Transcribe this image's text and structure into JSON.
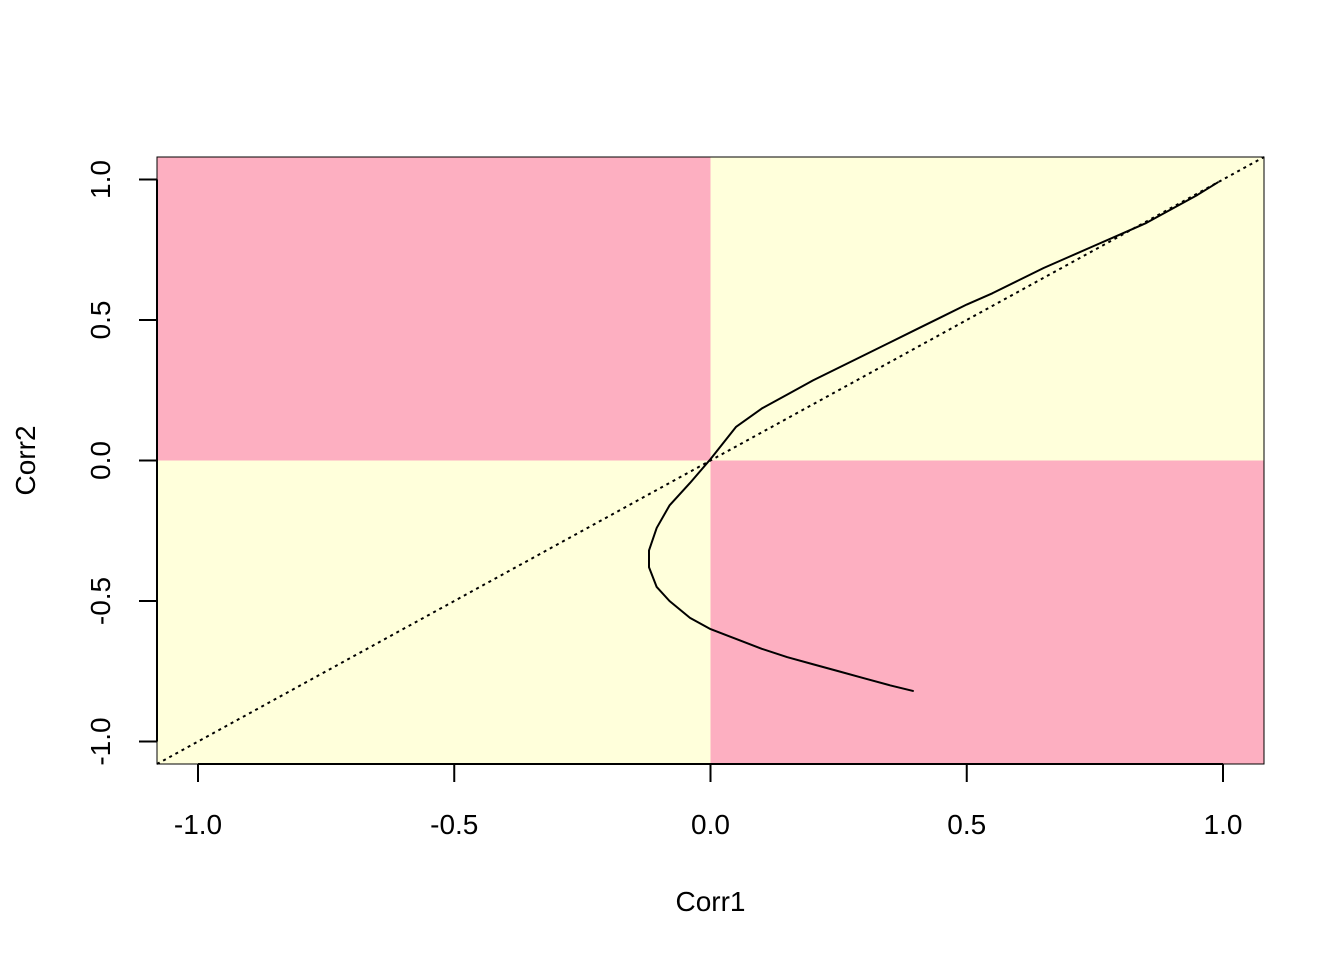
{
  "chart_data": {
    "type": "line",
    "title": "",
    "xlabel": "Corr1",
    "ylabel": "Corr2",
    "xlim": [
      -1.08,
      1.08
    ],
    "ylim": [
      -1.08,
      1.08
    ],
    "x_ticks": [
      -1.0,
      -0.5,
      0.0,
      0.5,
      1.0
    ],
    "x_tick_labels": [
      "-1.0",
      "-0.5",
      "0.0",
      "0.5",
      "1.0"
    ],
    "y_ticks": [
      -1.0,
      -0.5,
      0.0,
      0.5,
      1.0
    ],
    "y_tick_labels": [
      "-1.0",
      "-0.5",
      "0.0",
      "0.5",
      "1.0"
    ],
    "grid": false,
    "background_regions": [
      {
        "quadrant": "upper-left",
        "x": [
          -1.08,
          0
        ],
        "y": [
          0,
          1.08
        ],
        "color": "#FDAFC1"
      },
      {
        "quadrant": "upper-right",
        "x": [
          0,
          1.08
        ],
        "y": [
          0,
          1.08
        ],
        "color": "#FFFFDB"
      },
      {
        "quadrant": "lower-left",
        "x": [
          -1.08,
          0
        ],
        "y": [
          -1.08,
          0
        ],
        "color": "#FFFFDB"
      },
      {
        "quadrant": "lower-right",
        "x": [
          0,
          1.08
        ],
        "y": [
          -1.08,
          0
        ],
        "color": "#FDAFC1"
      }
    ],
    "series": [
      {
        "style": "solid",
        "color": "#000000",
        "x": [
          0.99,
          0.95,
          0.9,
          0.85,
          0.8,
          0.75,
          0.7,
          0.65,
          0.6,
          0.55,
          0.5,
          0.45,
          0.4,
          0.35,
          0.3,
          0.25,
          0.2,
          0.15,
          0.1,
          0.05,
          0.0,
          -0.04,
          -0.08,
          -0.105,
          -0.12,
          -0.12,
          -0.105,
          -0.08,
          -0.04,
          0.0,
          0.05,
          0.1,
          0.15,
          0.2,
          0.25,
          0.3,
          0.35,
          0.395
        ],
        "y": [
          0.99,
          0.945,
          0.895,
          0.845,
          0.805,
          0.765,
          0.725,
          0.685,
          0.64,
          0.595,
          0.555,
          0.51,
          0.465,
          0.42,
          0.375,
          0.33,
          0.285,
          0.235,
          0.185,
          0.12,
          0.005,
          -0.08,
          -0.16,
          -0.24,
          -0.32,
          -0.38,
          -0.45,
          -0.5,
          -0.56,
          -0.6,
          -0.635,
          -0.67,
          -0.7,
          -0.725,
          -0.75,
          -0.775,
          -0.8,
          -0.82
        ]
      },
      {
        "style": "dotted",
        "color": "#000000",
        "x": [
          -1.08,
          1.08
        ],
        "y": [
          -1.08,
          1.08
        ]
      }
    ]
  }
}
